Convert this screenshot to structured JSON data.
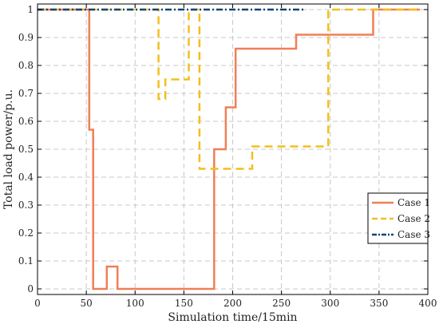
{
  "chart_data": {
    "type": "line",
    "title": "",
    "xlabel": "Simulation time/15min",
    "ylabel": "Total load power/p.u.",
    "xlim": [
      0,
      400
    ],
    "ylim": [
      -0.02,
      1.02
    ],
    "xticks": [
      0,
      50,
      100,
      150,
      200,
      250,
      300,
      350,
      400
    ],
    "xtick_labels": [
      "0",
      "50",
      "100",
      "150",
      "200",
      "250",
      "300",
      "350",
      "400"
    ],
    "yticks": [
      0,
      0.1,
      0.2,
      0.3,
      0.4,
      0.5,
      0.6,
      0.7,
      0.8,
      0.9,
      1
    ],
    "ytick_labels": [
      "0",
      "0.1",
      "0.2",
      "0.3",
      "0.4",
      "0.5",
      "0.6",
      "0.7",
      "0.8",
      "0.9",
      "1"
    ],
    "grid": true,
    "legend_position": "right",
    "series": [
      {
        "name": "Case 1",
        "color": "#f07f57",
        "dash": "solid",
        "x": [
          0,
          53,
          53,
          57,
          57,
          59,
          59,
          71,
          71,
          82,
          82,
          181,
          181,
          193,
          193,
          203,
          203,
          265,
          265,
          344,
          344,
          392
        ],
        "y": [
          1,
          1,
          0.57,
          0.57,
          0,
          0,
          0,
          0,
          0.08,
          0.08,
          0,
          0,
          0.5,
          0.5,
          0.65,
          0.65,
          0.86,
          0.86,
          0.91,
          0.91,
          1,
          1
        ]
      },
      {
        "name": "Case 2",
        "color": "#f2bf1c",
        "dash": "dashed",
        "x": [
          0,
          124,
          124,
          131,
          131,
          137,
          137,
          155,
          155,
          166,
          166,
          220,
          220,
          298,
          298,
          392
        ],
        "y": [
          1,
          1,
          0.68,
          0.68,
          0.75,
          0.75,
          0.75,
          0.75,
          1,
          1,
          0.43,
          0.43,
          0.51,
          0.51,
          1,
          1
        ]
      },
      {
        "name": "Case 3",
        "color": "#12447a",
        "dash": "dashdot",
        "x": [
          0,
          275
        ],
        "y": [
          1,
          1
        ]
      }
    ]
  }
}
